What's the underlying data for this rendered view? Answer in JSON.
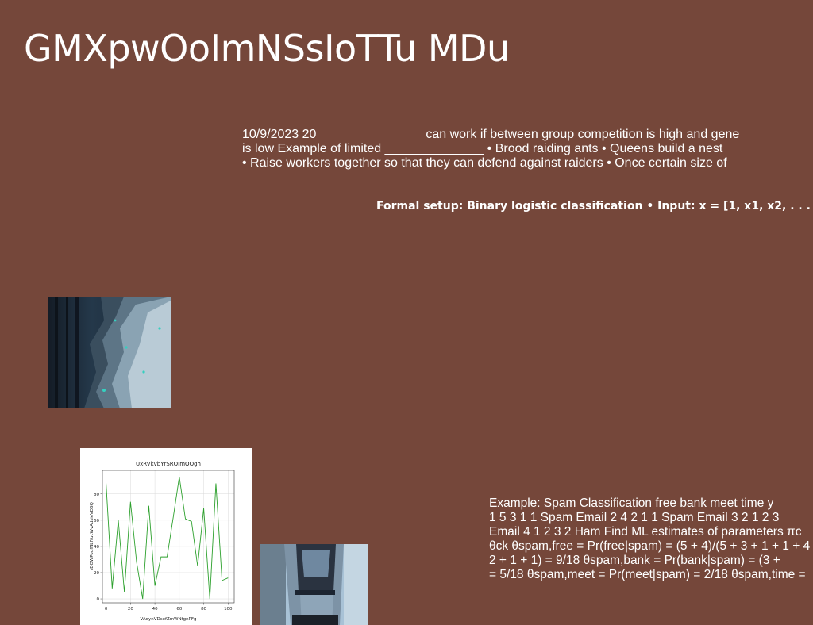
{
  "slide": {
    "title": "GMXpwOoImNSsIoTTu MDu",
    "paragraph": "10/9/2023 20 _______________can work if between group competition is high and gene\nis low Example of limited ______________ • Brood raiding ants • Queens build a nest\n• Raise workers together so that they can defend against raiders • Once certain size of",
    "formal_setup": "Formal setup: Binary logistic classification • Input: x = [1, x1, x2, . . .",
    "example": "Example: Spam Classification free bank meet time y\n1 5 3 1 1 Spam Email 2 4 2 1 1 Spam Email 3 2 1 2 3\nEmail 4 1 2 3 2 Ham Find ML estimates of parameters πc\nθck θspam,free = Pr(free|spam) = (5 + 4)/(5 + 3 + 1 + 1 + 4\n2 + 1 + 1) = 9/18 θspam,bank = Pr(bank|spam) = (3 +\n= 5/18 θspam,meet = Pr(meet|spam) = 2/18 θspam,time ="
  },
  "colors": {
    "background": "#75473a",
    "text": "#ffffff",
    "line": "#2ca02c"
  },
  "chart_data": {
    "type": "line",
    "title": "UxRVkvbYrSRQImQOgh",
    "xlabel": "VAdynVDsefZmWNfgnPFg",
    "ylabel": "rDOWPoufNLfYucWvAdsieVDSQ",
    "xlim": [
      -3,
      105
    ],
    "ylim": [
      -3,
      98
    ],
    "x_ticks": [
      0,
      20,
      40,
      60,
      80,
      100
    ],
    "y_ticks": [
      0,
      20,
      40,
      60,
      80
    ],
    "grid": true,
    "series": [
      {
        "x": [
          0,
          5,
          10,
          15,
          20,
          25,
          30,
          35,
          40,
          45,
          50,
          55,
          60,
          65,
          70,
          75,
          80,
          85,
          90,
          95,
          100
        ],
        "y": [
          88,
          8,
          60,
          5,
          74,
          28,
          0,
          71,
          10,
          32,
          32,
          62,
          93,
          61,
          59,
          25,
          69,
          0,
          88,
          14,
          16
        ]
      }
    ]
  }
}
